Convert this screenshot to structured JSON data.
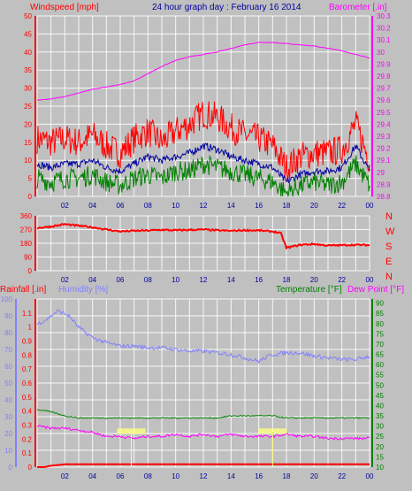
{
  "header": {
    "wind_label": "Windspeed [mph]",
    "title": "24 hour graph day : February 16 2014",
    "baro_label": "Barometer [.in]"
  },
  "bottom_labels": {
    "rain": "Rainfall [.in]",
    "humidity": "Humidity [%]",
    "temperature": "Temperature [°F]",
    "dewpoint": "Dew Point [°F]"
  },
  "colors": {
    "background": "#c0c0c0",
    "wind_gust": "#ff0000",
    "wind_avg": "#0000a0",
    "wind_low": "#008000",
    "barometer": "#ff00ff",
    "direction": "#ff0000",
    "humidity": "#8080ff",
    "temperature": "#008000",
    "dewpoint": "#ff00ff",
    "rain": "#ff0000",
    "grid": "#ffffff",
    "title": "#0000a0"
  },
  "chart_data": [
    {
      "type": "line",
      "x_ticks": [
        "02",
        "04",
        "06",
        "08",
        "10",
        "12",
        "14",
        "16",
        "18",
        "20",
        "22",
        "00"
      ],
      "left_axis": {
        "ylim": [
          0,
          50
        ],
        "ticks": [
          "0",
          "5",
          "10",
          "15",
          "20",
          "25",
          "30",
          "35",
          "40",
          "45",
          "50"
        ]
      },
      "right_axis": {
        "ylim": [
          28.8,
          30.3
        ],
        "ticks": [
          "28.8",
          "28.9",
          "29",
          "29.1",
          "29.2",
          "29.3",
          "29.4",
          "29.5",
          "29.6",
          "29.7",
          "29.8",
          "29.9",
          "30",
          "30.1",
          "30.2",
          "30.3"
        ]
      },
      "grid": true,
      "series": [
        {
          "name": "Windspeed [mph]",
          "axis": "left",
          "x": [
            0,
            1,
            2,
            3,
            4,
            5,
            6,
            7,
            8,
            9,
            10,
            11,
            12,
            13,
            14,
            15,
            16,
            17,
            18,
            19,
            20,
            21,
            22,
            23,
            24
          ],
          "values": [
            16,
            15,
            16,
            15,
            17,
            14,
            12,
            16,
            18,
            15,
            18,
            20,
            23,
            22,
            19,
            17,
            16,
            14,
            8,
            11,
            12,
            12,
            13,
            20,
            10
          ]
        },
        {
          "name": "Wind average",
          "axis": "left",
          "x": [
            0,
            1,
            2,
            3,
            4,
            5,
            6,
            7,
            8,
            9,
            10,
            11,
            12,
            13,
            14,
            15,
            16,
            17,
            18,
            19,
            20,
            21,
            22,
            23,
            24
          ],
          "values": [
            9,
            8,
            9,
            9,
            10,
            8,
            7,
            9,
            11,
            10,
            11,
            12,
            14,
            13,
            11,
            10,
            9,
            8,
            4,
            6,
            7,
            7,
            8,
            14,
            7
          ]
        },
        {
          "name": "Wind low",
          "axis": "left",
          "x": [
            0,
            1,
            2,
            3,
            4,
            5,
            6,
            7,
            8,
            9,
            10,
            11,
            12,
            13,
            14,
            15,
            16,
            17,
            18,
            19,
            20,
            21,
            22,
            23,
            24
          ],
          "values": [
            5,
            4,
            5,
            5,
            6,
            4,
            3,
            5,
            6,
            5,
            7,
            7,
            9,
            8,
            7,
            6,
            5,
            4,
            1,
            3,
            4,
            3,
            4,
            9,
            3
          ]
        },
        {
          "name": "Barometer [.in]",
          "axis": "right",
          "x": [
            0,
            1,
            2,
            3,
            4,
            5,
            6,
            7,
            8,
            9,
            10,
            11,
            12,
            13,
            14,
            15,
            16,
            17,
            18,
            19,
            20,
            21,
            22,
            23,
            24
          ],
          "values": [
            29.6,
            29.61,
            29.63,
            29.66,
            29.69,
            29.71,
            29.73,
            29.76,
            29.82,
            29.88,
            29.93,
            29.96,
            29.98,
            30.0,
            30.03,
            30.06,
            30.08,
            30.08,
            30.07,
            30.06,
            30.05,
            30.03,
            30.01,
            29.98,
            29.95
          ]
        }
      ]
    },
    {
      "type": "line",
      "x_ticks": [
        "02",
        "04",
        "06",
        "08",
        "10",
        "12",
        "14",
        "16",
        "18",
        "20",
        "22",
        "00"
      ],
      "left_axis": {
        "ylim": [
          0,
          360
        ],
        "ticks": [
          "0",
          "90",
          "180",
          "270",
          "360"
        ]
      },
      "right_axis": {
        "ticks": [
          "N",
          "W",
          "S",
          "E",
          "N"
        ]
      },
      "grid": true,
      "series": [
        {
          "name": "Wind direction",
          "x": [
            0,
            1,
            2,
            3,
            4,
            5,
            6,
            7,
            8,
            9,
            10,
            11,
            12,
            13,
            14,
            15,
            16,
            17,
            17.6,
            18,
            19,
            20,
            21,
            22,
            23,
            24
          ],
          "values": [
            280,
            290,
            305,
            295,
            285,
            270,
            258,
            262,
            264,
            268,
            265,
            268,
            270,
            265,
            262,
            266,
            264,
            258,
            245,
            150,
            170,
            175,
            165,
            168,
            170,
            168
          ]
        }
      ]
    },
    {
      "type": "line",
      "x_ticks": [
        "02",
        "04",
        "06",
        "08",
        "10",
        "12",
        "14",
        "16",
        "18",
        "20",
        "22",
        "00"
      ],
      "rain_axis": {
        "ylim": [
          0,
          1.2
        ],
        "ticks": [
          "0",
          "0.1",
          "0.2",
          "0.3",
          "0.4",
          "0.5",
          "0.6",
          "0.7",
          "0.8",
          "0.9",
          "1",
          "1.1"
        ]
      },
      "humidity_axis": {
        "ylim": [
          0,
          100
        ],
        "ticks": [
          "0",
          "10",
          "20",
          "30",
          "40",
          "50",
          "60",
          "70",
          "80",
          "90",
          "100"
        ]
      },
      "temp_axis": {
        "ylim": [
          10,
          92
        ],
        "ticks": [
          "10",
          "15",
          "20",
          "25",
          "30",
          "35",
          "40",
          "45",
          "50",
          "55",
          "60",
          "65",
          "70",
          "75",
          "80",
          "85",
          "90"
        ]
      },
      "grid": true,
      "series": [
        {
          "name": "Humidity [%]",
          "axis": "humidity",
          "x": [
            0,
            0.7,
            1.5,
            2.3,
            3,
            4,
            5,
            6,
            7,
            8,
            9,
            10,
            11,
            12,
            13,
            14,
            15,
            16,
            17,
            18,
            19,
            20,
            21,
            22,
            23,
            24
          ],
          "values": [
            85,
            88,
            93,
            90,
            83,
            77,
            74,
            72,
            72,
            71,
            71,
            70,
            69,
            69,
            68,
            67,
            65,
            63,
            67,
            68,
            68,
            66,
            65,
            64,
            64,
            66
          ]
        },
        {
          "name": "Temperature [°F]",
          "axis": "temp",
          "x": [
            0,
            1,
            2,
            3,
            4,
            5,
            6,
            7,
            8,
            9,
            10,
            11,
            12,
            13,
            14,
            15,
            16,
            17,
            18,
            19,
            20,
            21,
            22,
            23,
            24
          ],
          "values": [
            38,
            37,
            35,
            34,
            34,
            34,
            34,
            34,
            34,
            34,
            34,
            34,
            34,
            34,
            35,
            35,
            35,
            35,
            34,
            34,
            34,
            34,
            34,
            34,
            34
          ]
        },
        {
          "name": "Dew Point [°F]",
          "axis": "temp",
          "x": [
            0,
            1,
            2,
            3,
            4,
            5,
            6,
            7,
            8,
            9,
            10,
            11,
            12,
            13,
            14,
            15,
            16,
            17,
            18,
            19,
            20,
            21,
            22,
            23,
            24
          ],
          "values": [
            30,
            29,
            29,
            28,
            27,
            25,
            25,
            24,
            25,
            25,
            26,
            25,
            26,
            25,
            26,
            25,
            25,
            25,
            26,
            25,
            25,
            24,
            24,
            24,
            24
          ]
        },
        {
          "name": "Rainfall [.in]",
          "axis": "rain",
          "x": [
            0,
            0.5,
            1,
            2,
            24
          ],
          "values": [
            0,
            0,
            0.01,
            0.02,
            0.02
          ]
        }
      ]
    }
  ]
}
